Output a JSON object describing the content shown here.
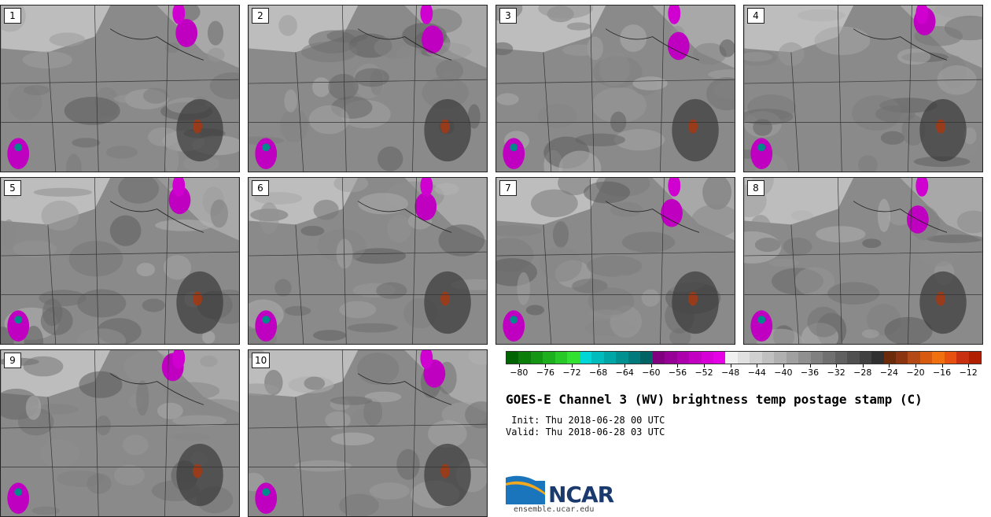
{
  "panels": [
    "1",
    "2",
    "3",
    "4",
    "5",
    "6",
    "7",
    "8",
    "9",
    "10"
  ],
  "colorbar": {
    "colors": [
      "#006400",
      "#0a7d0a",
      "#149614",
      "#1eaf1e",
      "#28c828",
      "#32e132",
      "#00d6d6",
      "#00bcbc",
      "#00a6a6",
      "#009090",
      "#007a7a",
      "#006464",
      "#800080",
      "#960096",
      "#ac00ac",
      "#c200c2",
      "#d600d6",
      "#e600e6",
      "#f0f0f0",
      "#e0e0e0",
      "#d0d0d0",
      "#c0c0c0",
      "#b0b0b0",
      "#a0a0a0",
      "#909090",
      "#808080",
      "#707070",
      "#606060",
      "#505050",
      "#404040",
      "#303030",
      "#6b2a0a",
      "#8b3510",
      "#b34a15",
      "#d65a10",
      "#f07010",
      "#e85010",
      "#c83010",
      "#b02000"
    ],
    "tick_labels": [
      "−80",
      "−76",
      "−72",
      "−68",
      "−64",
      "−60",
      "−56",
      "−52",
      "−48",
      "−44",
      "−40",
      "−36",
      "−32",
      "−28",
      "−24",
      "−20",
      "−16",
      "−12"
    ],
    "min": -82,
    "max": -10,
    "tick_values": [
      -80,
      -76,
      -72,
      -68,
      -64,
      -60,
      -56,
      -52,
      -48,
      -44,
      -40,
      -36,
      -32,
      -28,
      -24,
      -20,
      -16,
      -12
    ]
  },
  "title": "GOES-E Channel 3 (WV) brightness temp postage stamp (C)",
  "init_line": " Init: Thu 2018-06-28 00 UTC",
  "valid_line": "Valid: Thu 2018-06-28 03 UTC",
  "logo": {
    "name": "NCAR",
    "url_text": "ensemble.ucar.edu"
  }
}
